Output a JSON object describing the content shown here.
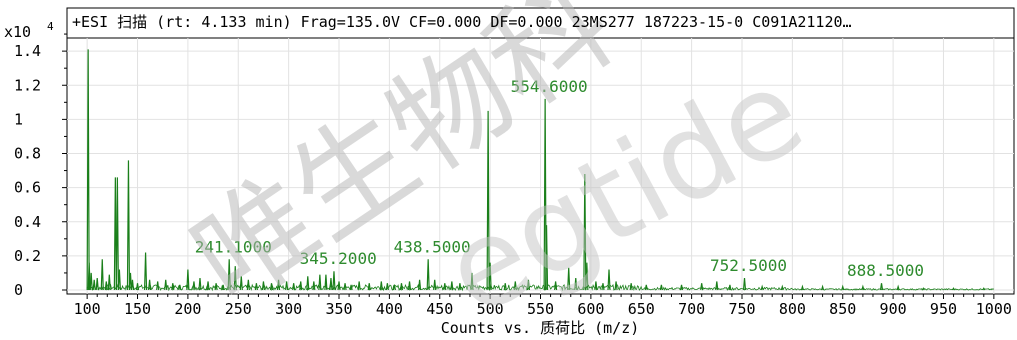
{
  "chart_data": {
    "type": "line",
    "title": "+ESI 扫描 (rt: 4.133 min) Frag=135.0V CF=0.000 DF=0.000 23MS277 187223-15-0 C091A21120…",
    "y_multiplier_label": "x10",
    "y_multiplier_exponent": "4",
    "xlabel": "Counts vs. 质荷比 (m/z)",
    "xlim": [
      80,
      1020
    ],
    "ylim": [
      0,
      1.6
    ],
    "x_ticks": [
      100,
      150,
      200,
      250,
      300,
      350,
      400,
      450,
      500,
      550,
      600,
      650,
      700,
      750,
      800,
      850,
      900,
      950,
      1000
    ],
    "y_ticks": [
      0,
      0.2,
      0.4,
      0.6,
      0.8,
      1,
      1.2,
      1.4
    ],
    "y_tick_labels": [
      "0",
      "0.2",
      "0.4",
      "0.6",
      "0.8",
      "1",
      "1.2",
      "1.4"
    ],
    "grid": true,
    "line_color": "#1a7f1a",
    "label_color": "#2e8b2e",
    "series": [
      {
        "peaks": [
          [
            101,
            1.41
          ],
          [
            102,
            0.16
          ],
          [
            104,
            0.1
          ],
          [
            107,
            0.06
          ],
          [
            110,
            0.07
          ],
          [
            115,
            0.18
          ],
          [
            119,
            0.05
          ],
          [
            122,
            0.09
          ],
          [
            128,
            0.66
          ],
          [
            130,
            0.66
          ],
          [
            132,
            0.12
          ],
          [
            141,
            0.76
          ],
          [
            143,
            0.1
          ],
          [
            145,
            0.06
          ],
          [
            150,
            0.04
          ],
          [
            158,
            0.22
          ],
          [
            162,
            0.06
          ],
          [
            170,
            0.05
          ],
          [
            178,
            0.06
          ],
          [
            185,
            0.04
          ],
          [
            192,
            0.03
          ],
          [
            200,
            0.12
          ],
          [
            206,
            0.05
          ],
          [
            212,
            0.07
          ],
          [
            220,
            0.05
          ],
          [
            228,
            0.04
          ],
          [
            235,
            0.03
          ],
          [
            241,
            0.18
          ],
          [
            247,
            0.14
          ],
          [
            253,
            0.08
          ],
          [
            260,
            0.06
          ],
          [
            268,
            0.04
          ],
          [
            275,
            0.05
          ],
          [
            283,
            0.04
          ],
          [
            290,
            0.06
          ],
          [
            298,
            0.05
          ],
          [
            305,
            0.04
          ],
          [
            312,
            0.05
          ],
          [
            319,
            0.08
          ],
          [
            325,
            0.05
          ],
          [
            331,
            0.09
          ],
          [
            337,
            0.09
          ],
          [
            342,
            0.07
          ],
          [
            345,
            0.11
          ],
          [
            350,
            0.05
          ],
          [
            356,
            0.04
          ],
          [
            362,
            0.03
          ],
          [
            370,
            0.05
          ],
          [
            380,
            0.04
          ],
          [
            392,
            0.05
          ],
          [
            398,
            0.04
          ],
          [
            405,
            0.03
          ],
          [
            412,
            0.04
          ],
          [
            420,
            0.05
          ],
          [
            430,
            0.06
          ],
          [
            438.5,
            0.18
          ],
          [
            445,
            0.06
          ],
          [
            455,
            0.04
          ],
          [
            462,
            0.05
          ],
          [
            470,
            0.04
          ],
          [
            482,
            0.1
          ],
          [
            498,
            1.05
          ],
          [
            500,
            0.16
          ],
          [
            515,
            0.04
          ],
          [
            525,
            0.05
          ],
          [
            538,
            0.06
          ],
          [
            554.6,
            1.12
          ],
          [
            556,
            0.38
          ],
          [
            565,
            0.05
          ],
          [
            578,
            0.13
          ],
          [
            585,
            0.07
          ],
          [
            594,
            0.68
          ],
          [
            596,
            0.16
          ],
          [
            605,
            0.05
          ],
          [
            612,
            0.04
          ],
          [
            618,
            0.12
          ],
          [
            625,
            0.05
          ],
          [
            640,
            0.04
          ],
          [
            655,
            0.03
          ],
          [
            670,
            0.03
          ],
          [
            690,
            0.03
          ],
          [
            710,
            0.04
          ],
          [
            725,
            0.05
          ],
          [
            738,
            0.03
          ],
          [
            752.5,
            0.07
          ],
          [
            770,
            0.02
          ],
          [
            790,
            0.02
          ],
          [
            810,
            0.02
          ],
          [
            830,
            0.02
          ],
          [
            850,
            0.02
          ],
          [
            870,
            0.02
          ],
          [
            888.5,
            0.04
          ],
          [
            905,
            0.02
          ],
          [
            930,
            0.01
          ],
          [
            960,
            0.01
          ],
          [
            990,
            0.01
          ]
        ]
      }
    ],
    "peak_labels": [
      {
        "text": "241.1000",
        "x": 241.1,
        "y": 0.18
      },
      {
        "text": "345.2000",
        "x": 345.2,
        "y": 0.11
      },
      {
        "text": "438.5000",
        "x": 438.5,
        "y": 0.18
      },
      {
        "text": "554.6000",
        "x": 554.6,
        "y": 1.12
      },
      {
        "text": "752.5000",
        "x": 752.5,
        "y": 0.07
      },
      {
        "text": "888.5000",
        "x": 888.5,
        "y": 0.04
      }
    ]
  },
  "watermark": {
    "line1": "唯生物科",
    "line2": "egtide"
  }
}
